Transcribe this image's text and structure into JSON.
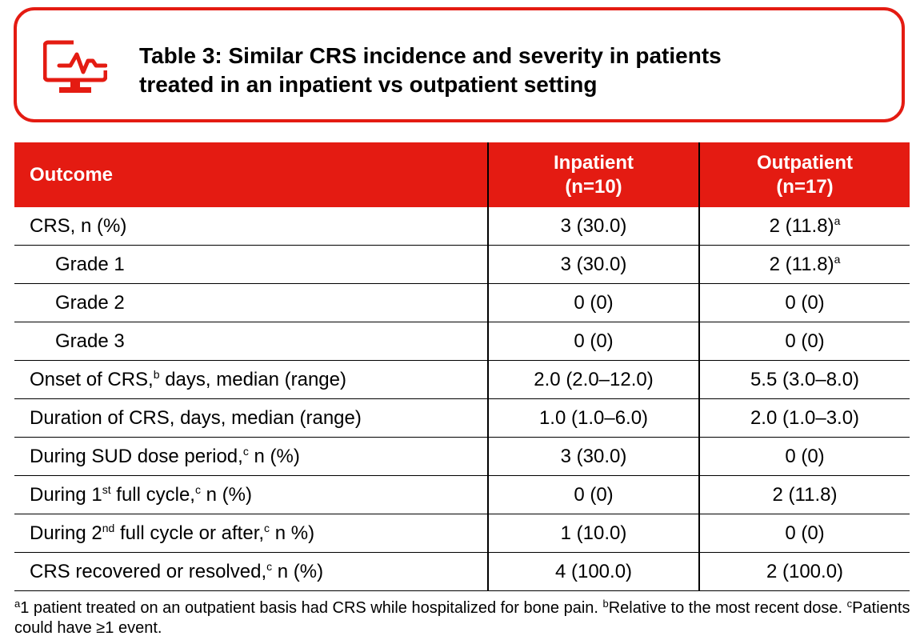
{
  "title": {
    "line1": "Table 3: Similar CRS incidence and severity in patients",
    "line2": "treated in an inpatient vs outpatient setting",
    "icon": "monitor-pulse-icon",
    "accent_color": "#e41b12"
  },
  "table": {
    "headers": {
      "outcome": "Outcome",
      "inpatient_line1": "Inpatient",
      "inpatient_line2": "(n=10)",
      "outpatient_line1": "Outpatient",
      "outpatient_line2": "(n=17)"
    },
    "rows": [
      {
        "pre": "CRS, n (%)",
        "sup": "",
        "post": "",
        "inpatient": "3 (30.0)",
        "outpatient": "2 (11.8)",
        "outpatient_sup": "a"
      },
      {
        "pre": "Grade 1",
        "sup": "",
        "post": "",
        "inpatient": "3 (30.0)",
        "outpatient": "2 (11.8)",
        "outpatient_sup": "a"
      },
      {
        "pre": "Grade 2",
        "sup": "",
        "post": "",
        "inpatient": "0 (0)",
        "outpatient": "0 (0)",
        "outpatient_sup": ""
      },
      {
        "pre": "Grade 3",
        "sup": "",
        "post": "",
        "inpatient": "0 (0)",
        "outpatient": "0 (0)",
        "outpatient_sup": ""
      },
      {
        "pre": "Onset of CRS,",
        "sup": "b",
        "post": " days, median (range)",
        "inpatient": "2.0 (2.0–12.0)",
        "outpatient": "5.5 (3.0–8.0)",
        "outpatient_sup": ""
      },
      {
        "pre": "Duration of CRS, days, median (range)",
        "sup": "",
        "post": "",
        "inpatient": "1.0 (1.0–6.0)",
        "outpatient": "2.0 (1.0–3.0)",
        "outpatient_sup": ""
      },
      {
        "pre": "During SUD dose period,",
        "sup": "c",
        "post": " n (%)",
        "inpatient": "3 (30.0)",
        "outpatient": "0 (0)",
        "outpatient_sup": ""
      },
      {
        "pre": "During 1",
        "sup": "st",
        "post": " full cycle,",
        "sup2": "c",
        "post2": " n (%)",
        "inpatient": "0 (0)",
        "outpatient": "2 (11.8)",
        "outpatient_sup": ""
      },
      {
        "pre": "During 2",
        "sup": "nd",
        "post": " full cycle or after,",
        "sup2": "c",
        "post2": " n %)",
        "inpatient": "1 (10.0)",
        "outpatient": "0 (0)",
        "outpatient_sup": ""
      },
      {
        "pre": "CRS recovered or resolved,",
        "sup": "c",
        "post": " n (%)",
        "inpatient": "4 (100.0)",
        "outpatient": "2 (100.0)",
        "outpatient_sup": ""
      }
    ]
  },
  "footnote": {
    "a_mark": "a",
    "a_text": "1 patient treated on an outpatient basis had CRS while hospitalized for bone pain. ",
    "b_mark": "b",
    "b_text": "Relative to the most recent dose. ",
    "c_mark": "c",
    "c_text": "Patients could have ≥1 event."
  }
}
